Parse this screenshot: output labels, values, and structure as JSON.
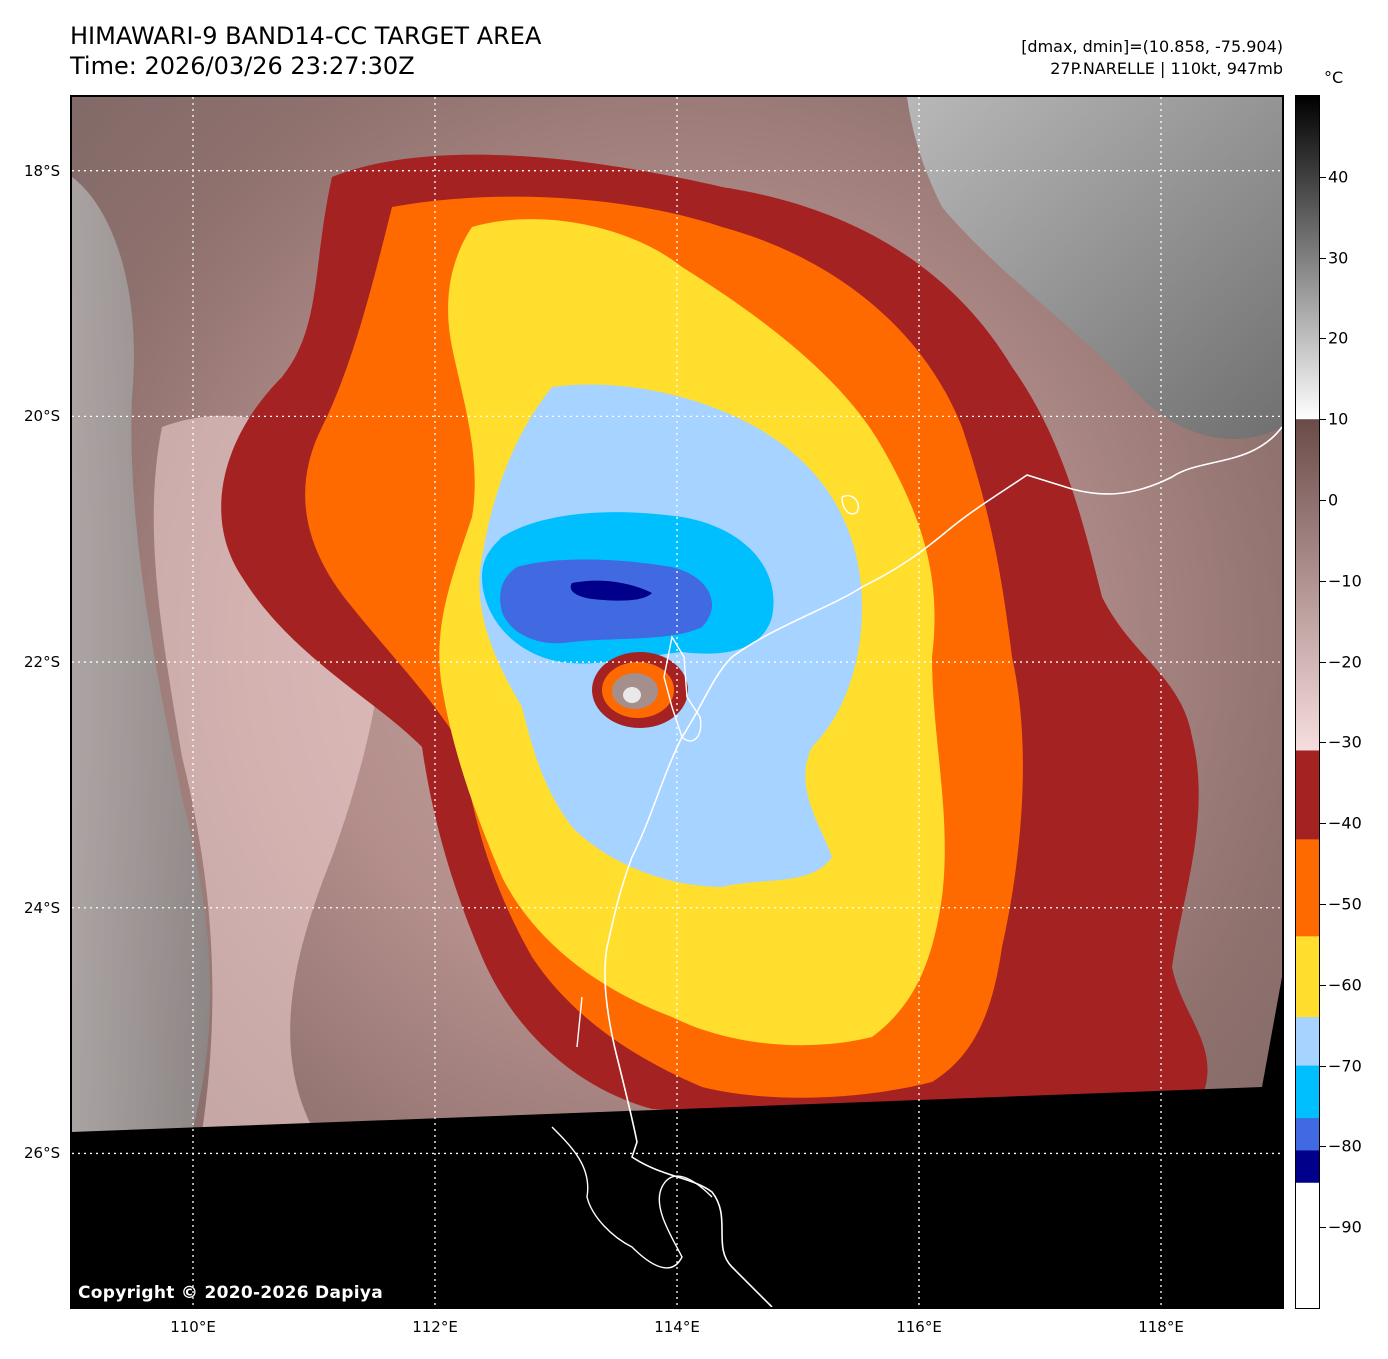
{
  "header": {
    "title_line1": "HIMAWARI-9 BAND14-CC TARGET AREA",
    "title_line2": "Time: 2026/03/26 23:27:30Z",
    "dmax_dmin": "[dmax, dmin]=(10.858, -75.904)",
    "storm_info": "27P.NARELLE | 110kt, 947mb"
  },
  "map": {
    "lon_range": [
      109.0,
      119.0
    ],
    "lat_range": [
      -27.25,
      -17.4
    ],
    "center": {
      "lon": 113.7,
      "lat": -22.2
    },
    "lat_ticks": [
      {
        "value": -18,
        "label": "18°S"
      },
      {
        "value": -20,
        "label": "20°S"
      },
      {
        "value": -22,
        "label": "22°S"
      },
      {
        "value": -24,
        "label": "24°S"
      },
      {
        "value": -26,
        "label": "26°S"
      }
    ],
    "lon_ticks": [
      {
        "value": 110,
        "label": "110°E"
      },
      {
        "value": 112,
        "label": "112°E"
      },
      {
        "value": 114,
        "label": "114°E"
      },
      {
        "value": 116,
        "label": "116°E"
      },
      {
        "value": 118,
        "label": "118°E"
      }
    ],
    "gridlines": "dotted white",
    "copyright": "Copyright © 2020-2026 Dapiya"
  },
  "colorbar": {
    "unit": "°C",
    "range": [
      -100,
      50
    ],
    "ticks": [
      40,
      30,
      20,
      10,
      0,
      -10,
      -20,
      -30,
      -40,
      -50,
      -60,
      -70,
      -80,
      -90
    ],
    "tick_labels": [
      "40",
      "30",
      "20",
      "10",
      "0",
      "−10",
      "−20",
      "−30",
      "−40",
      "−50",
      "−60",
      "−70",
      "−80",
      "−90"
    ],
    "segments": [
      {
        "from": 50,
        "to": 10,
        "style": "grayscale",
        "color_top": "#000000",
        "color_bottom": "#ffffff"
      },
      {
        "from": 10,
        "to": -31,
        "style": "brown-to-pink",
        "color_top": "#6b4b48",
        "color_bottom": "#f7dede"
      },
      {
        "from": -31,
        "to": -42,
        "color": "#a52222"
      },
      {
        "from": -42,
        "to": -54,
        "color": "#ff6a00"
      },
      {
        "from": -54,
        "to": -64,
        "color": "#ffde2e"
      },
      {
        "from": -64,
        "to": -70,
        "color": "#a6d3ff"
      },
      {
        "from": -70,
        "to": -76.5,
        "color": "#00bfff"
      },
      {
        "from": -76.5,
        "to": -80.5,
        "color": "#4169e1"
      },
      {
        "from": -80.5,
        "to": -84.5,
        "color": "#00008b"
      },
      {
        "from": -84.5,
        "to": -100,
        "color": "#ffffff"
      }
    ]
  }
}
